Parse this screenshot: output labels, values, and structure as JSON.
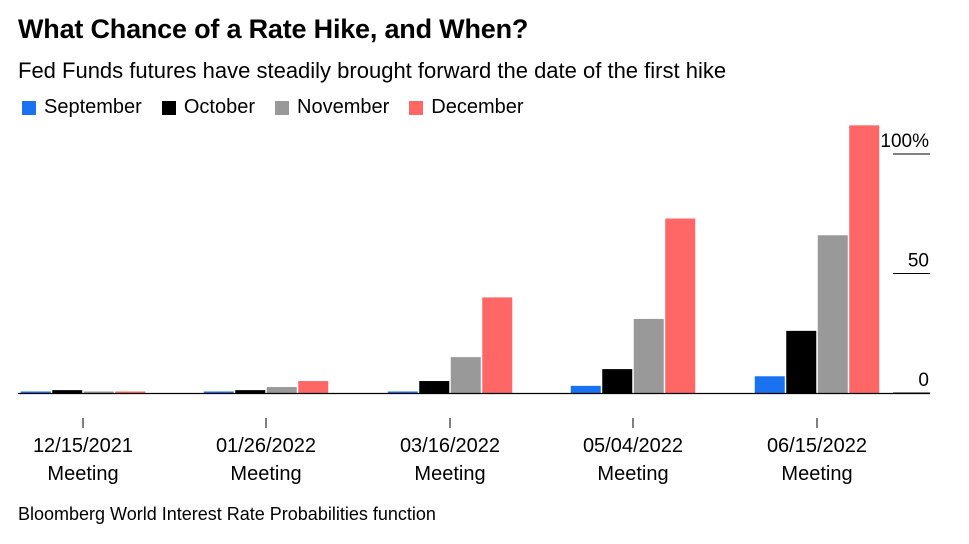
{
  "title": "What Chance of a Rate Hike, and When?",
  "subtitle": "Fed Funds futures have steadily brought forward the date of the first hike",
  "source": "Bloomberg World Interest Rate Probabilities function",
  "legend": [
    {
      "name": "September",
      "color": "#1a72f0"
    },
    {
      "name": "October",
      "color": "#000000"
    },
    {
      "name": "November",
      "color": "#999999"
    },
    {
      "name": "December",
      "color": "#ff6666"
    }
  ],
  "chart_data": {
    "type": "bar",
    "categories": [
      [
        "12/15/2021",
        "Meeting"
      ],
      [
        "01/26/2022",
        "Meeting"
      ],
      [
        "03/16/2022",
        "Meeting"
      ],
      [
        "05/04/2022",
        "Meeting"
      ],
      [
        "06/15/2022",
        "Meeting"
      ]
    ],
    "series": [
      {
        "name": "September",
        "color": "#1a72f0",
        "values": [
          0.3,
          0.4,
          0.5,
          3,
          7
        ]
      },
      {
        "name": "October",
        "color": "#000000",
        "values": [
          1.2,
          1.2,
          5,
          10,
          26
        ]
      },
      {
        "name": "November",
        "color": "#999999",
        "values": [
          0.3,
          2.5,
          15,
          31,
          66
        ]
      },
      {
        "name": "December",
        "color": "#ff6666",
        "values": [
          0.4,
          5,
          40,
          73,
          112
        ]
      }
    ],
    "y_ticks": [
      "100%",
      "50",
      "0"
    ],
    "y_tick_values": [
      100,
      50,
      0
    ],
    "ylim": [
      0,
      112
    ],
    "axis_position": "right",
    "grid": false
  }
}
